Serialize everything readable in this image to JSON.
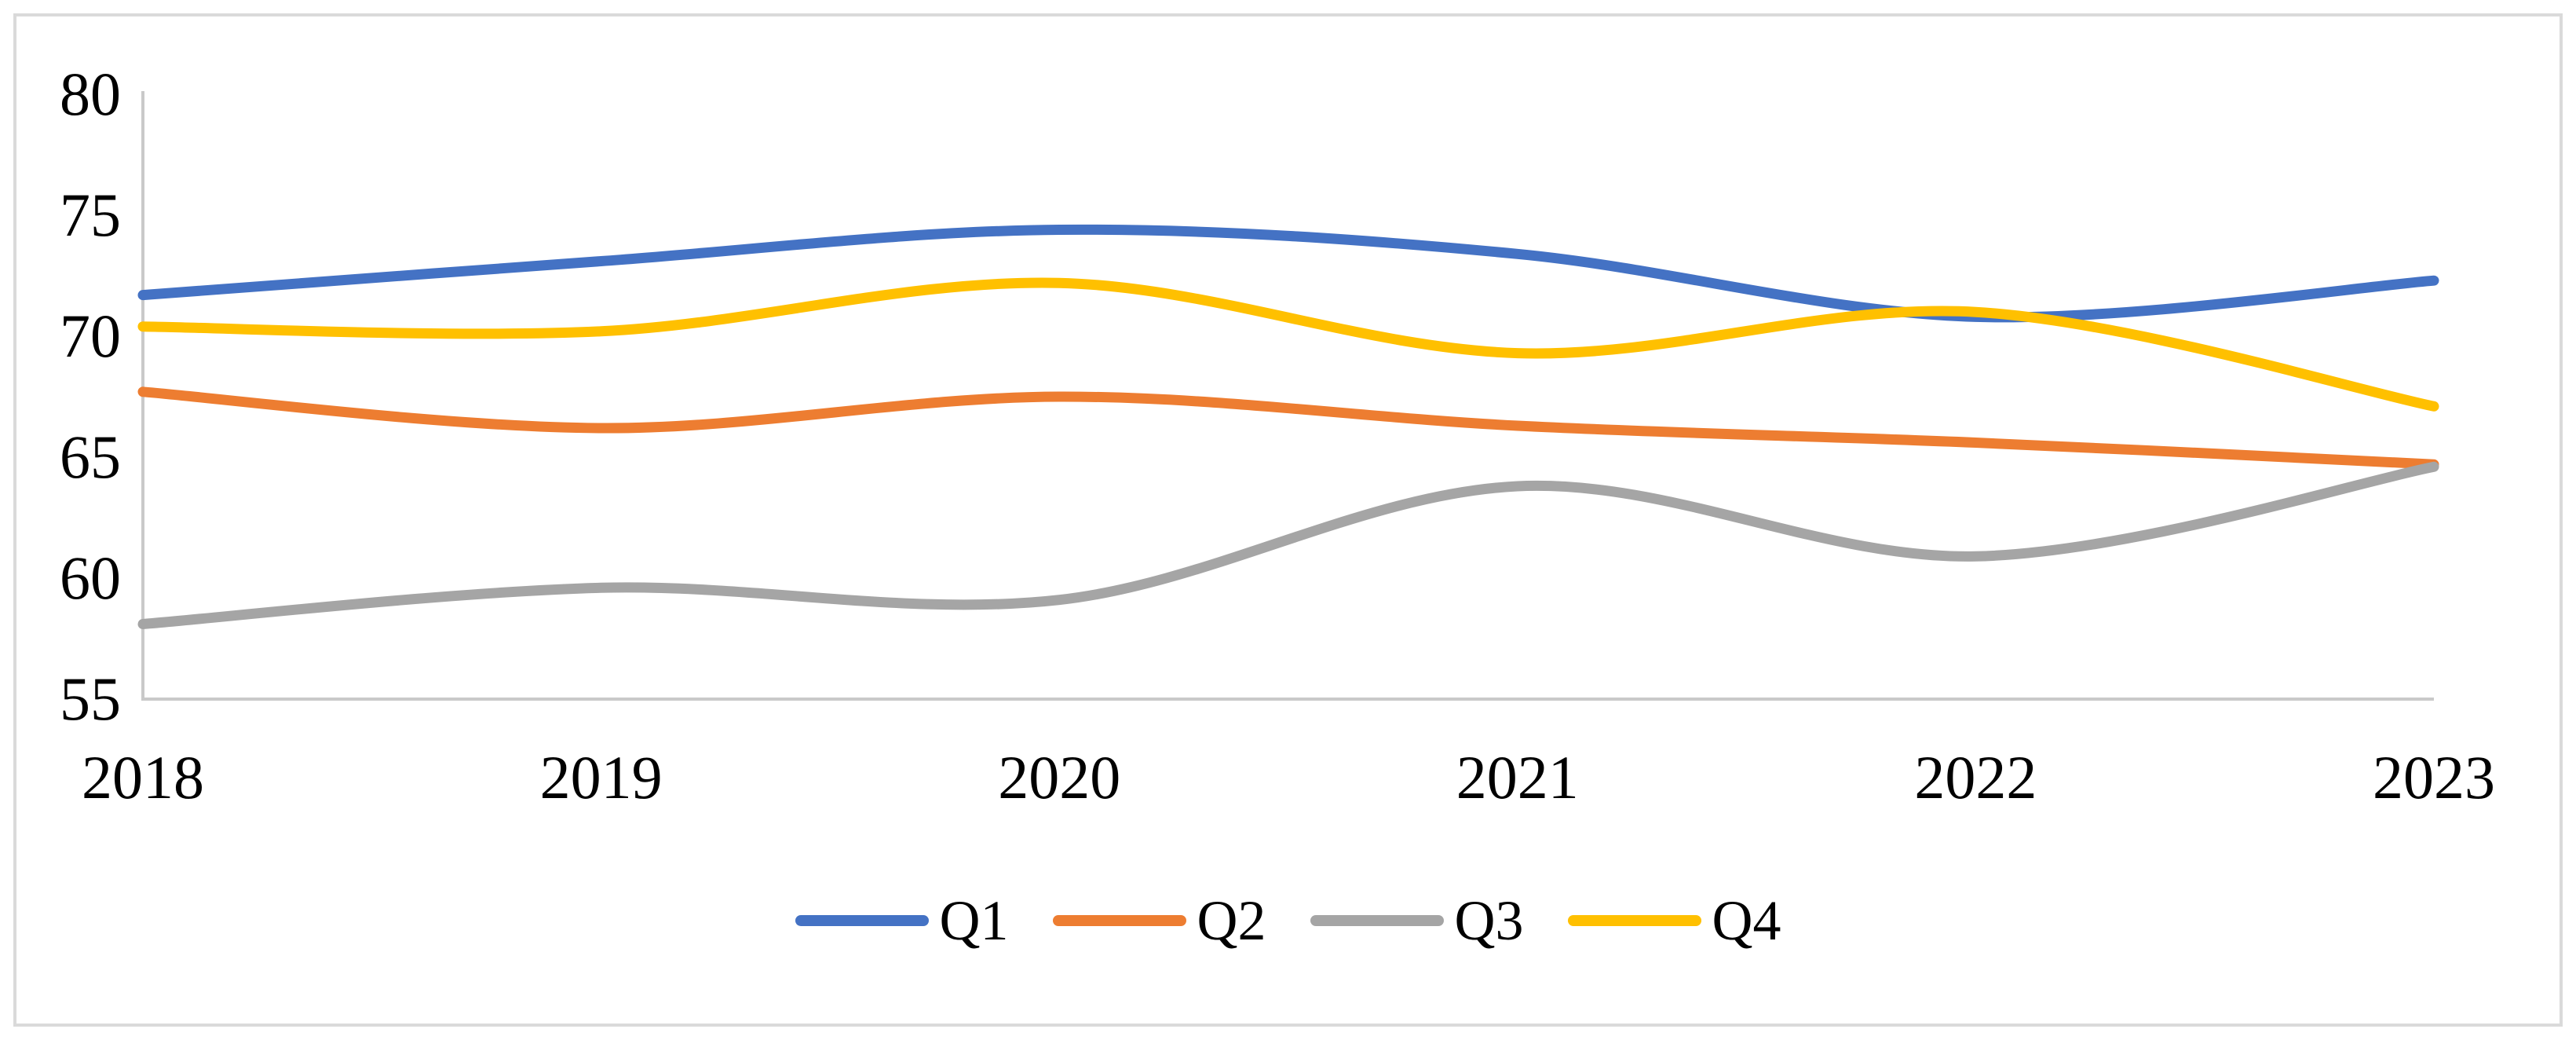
{
  "figure": {
    "background_color": "#FFFFFF",
    "border_color": "#DADADA",
    "axis_color": "#C9C9C9",
    "text_color": "#000000"
  },
  "chart_data": {
    "type": "line",
    "smooth": true,
    "title": "",
    "xlabel": "",
    "ylabel": "",
    "categories": [
      "2018",
      "2019",
      "2020",
      "2021",
      "2022",
      "2023"
    ],
    "x": [
      2018,
      2019,
      2020,
      2021,
      2022,
      2023
    ],
    "series": [
      {
        "name": "Q1",
        "color": "#4472C4",
        "values": [
          71.7,
          73.1,
          74.4,
          73.4,
          70.8,
          72.3
        ]
      },
      {
        "name": "Q2",
        "color": "#ED7D31",
        "values": [
          67.7,
          66.2,
          67.5,
          66.3,
          65.6,
          64.7
        ]
      },
      {
        "name": "Q3",
        "color": "#A5A5A5",
        "values": [
          58.1,
          59.6,
          59.1,
          63.8,
          60.9,
          64.6
        ]
      },
      {
        "name": "Q4",
        "color": "#FFC000",
        "values": [
          70.4,
          70.2,
          72.2,
          69.3,
          71.0,
          67.1
        ]
      }
    ],
    "yticks": [
      55,
      60,
      65,
      70,
      75,
      80
    ],
    "ylim": [
      55,
      80
    ],
    "grid": false,
    "legend_position": "bottom",
    "legend_labels": [
      "Q1",
      "Q2",
      "Q3",
      "Q4"
    ]
  }
}
